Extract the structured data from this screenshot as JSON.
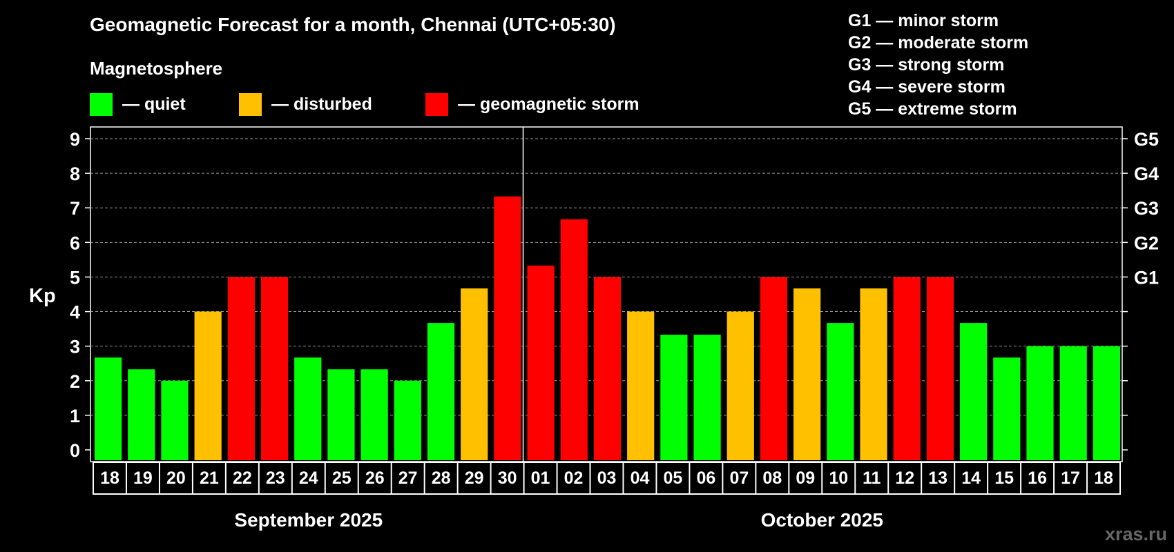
{
  "header": {
    "title": "Geomagnetic Forecast for a month, Chennai (UTC+05:30)",
    "legend_title": "Magnetosphere"
  },
  "legend": [
    {
      "label": "— quiet",
      "color": "#00ff00"
    },
    {
      "label": "— disturbed",
      "color": "#ffc000"
    },
    {
      "label": "— geomagnetic storm",
      "color": "#ff0000"
    }
  ],
  "storm_levels": [
    "G1 — minor storm",
    "G2 — moderate storm",
    "G3 — strong storm",
    "G4 — severe storm",
    "G5 — extreme storm"
  ],
  "watermark": "xras.ru",
  "chart_data": {
    "type": "bar",
    "ylabel": "Kp",
    "ylim": [
      0,
      9
    ],
    "yticks": [
      "0",
      "1",
      "2",
      "3",
      "4",
      "5",
      "6",
      "7",
      "8",
      "9"
    ],
    "right_ticks": [
      {
        "value": 5,
        "label": "G1"
      },
      {
        "value": 6,
        "label": "G2"
      },
      {
        "value": 7,
        "label": "G3"
      },
      {
        "value": 8,
        "label": "G4"
      },
      {
        "value": 9,
        "label": "G5"
      }
    ],
    "grid": true,
    "categories": [
      "18",
      "19",
      "20",
      "21",
      "22",
      "23",
      "24",
      "25",
      "26",
      "27",
      "28",
      "29",
      "30",
      "01",
      "02",
      "03",
      "04",
      "05",
      "06",
      "07",
      "08",
      "09",
      "10",
      "11",
      "12",
      "13",
      "14",
      "15",
      "16",
      "17",
      "18"
    ],
    "values": [
      2.67,
      2.33,
      2.0,
      4.0,
      5.0,
      5.0,
      2.67,
      2.33,
      2.33,
      2.0,
      3.67,
      4.67,
      7.33,
      5.33,
      6.67,
      5.0,
      4.0,
      3.33,
      3.33,
      4.0,
      5.0,
      4.67,
      3.67,
      4.67,
      5.0,
      5.0,
      3.67,
      2.67,
      3.0,
      3.0,
      3.0
    ],
    "status": [
      "quiet",
      "quiet",
      "quiet",
      "disturbed",
      "storm",
      "storm",
      "quiet",
      "quiet",
      "quiet",
      "quiet",
      "quiet",
      "disturbed",
      "storm",
      "storm",
      "storm",
      "storm",
      "disturbed",
      "quiet",
      "quiet",
      "disturbed",
      "storm",
      "disturbed",
      "quiet",
      "disturbed",
      "storm",
      "storm",
      "quiet",
      "quiet",
      "quiet",
      "quiet",
      "quiet"
    ],
    "status_colors": {
      "quiet": "#00ff00",
      "disturbed": "#ffc000",
      "storm": "#ff0000"
    },
    "months": [
      {
        "label": "September 2025",
        "start": 0,
        "end": 12
      },
      {
        "label": "October 2025",
        "start": 13,
        "end": 30
      }
    ],
    "month_divider_after": 12
  }
}
